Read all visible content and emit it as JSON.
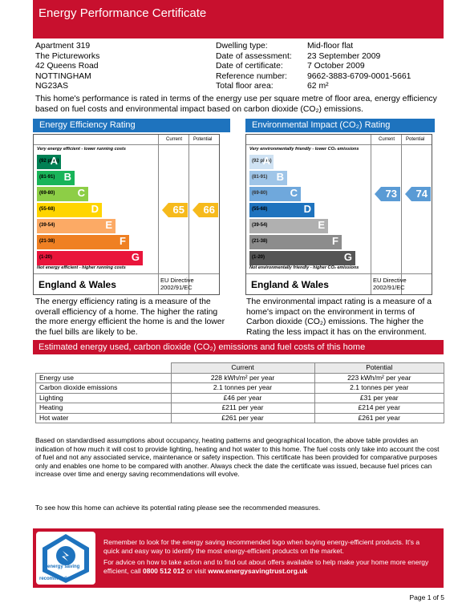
{
  "header": {
    "title": "Energy Performance Certificate"
  },
  "address": [
    "Apartment 319",
    "The Pictureworks",
    "42 Queens Road",
    "NOTTINGHAM",
    "NG23AS"
  ],
  "details": [
    {
      "label": "Dwelling type:",
      "value": "Mid-floor flat"
    },
    {
      "label": "Date of assessment:",
      "value": "23 September 2009"
    },
    {
      "label": "Date of certificate:",
      "value": "7 October 2009"
    },
    {
      "label": "Reference number:",
      "value": "9662-3883-6709-0001-5661"
    },
    {
      "label": "Total floor area:",
      "value": "62 m²"
    }
  ],
  "intro": "This home's performance is rated in terms of the energy use per square metre of floor area, energy efficiency based on fuel costs and environmental impact based on carbon dioxide (CO₂) emissions.",
  "efficiency": {
    "title": "Energy Efficiency Rating",
    "col_current": "Current",
    "col_potential": "Potential",
    "top_caption": "Very energy efficient - lower running costs",
    "bottom_caption": "Not energy efficient - higher running costs",
    "region": "England & Wales",
    "directive": "EU Directive\n2002/91/EC",
    "current": "65",
    "potential": "66",
    "current_color": "#f6ba1c",
    "potential_color": "#f6ba1c",
    "bands": [
      {
        "range": "(92 plus)",
        "letter": "A",
        "color": "#008054"
      },
      {
        "range": "(81-91)",
        "letter": "B",
        "color": "#19b459"
      },
      {
        "range": "(69-80)",
        "letter": "C",
        "color": "#8dce46"
      },
      {
        "range": "(55-68)",
        "letter": "D",
        "color": "#ffd500"
      },
      {
        "range": "(39-54)",
        "letter": "E",
        "color": "#fcaa65"
      },
      {
        "range": "(21-38)",
        "letter": "F",
        "color": "#ef8023"
      },
      {
        "range": "(1-20)",
        "letter": "G",
        "color": "#e9153b"
      }
    ],
    "explanation": "The energy efficiency rating is a measure of the overall efficiency of a home. The higher the rating the more energy efficient the home is and the lower the fuel bills are likely to be."
  },
  "environmental": {
    "title": "Environmental Impact (CO₂) Rating",
    "col_current": "Current",
    "col_potential": "Potential",
    "top_caption": "Very environmentally friendly - lower CO₂ emissions",
    "bottom_caption": "Not environmentally friendly - higher CO₂ emissions",
    "region": "England & Wales",
    "directive": "EU Directive\n2002/91/EC",
    "current": "73",
    "potential": "74",
    "current_color": "#5a9bd5",
    "potential_color": "#5a9bd5",
    "bands": [
      {
        "range": "(92 plus)",
        "letter": "A",
        "color": "#cfe2f3"
      },
      {
        "range": "(81-91)",
        "letter": "B",
        "color": "#9fc5e8"
      },
      {
        "range": "(69-80)",
        "letter": "C",
        "color": "#6fa8dc"
      },
      {
        "range": "(55-68)",
        "letter": "D",
        "color": "#1e73be"
      },
      {
        "range": "(39-54)",
        "letter": "E",
        "color": "#b0b0b0"
      },
      {
        "range": "(21-38)",
        "letter": "F",
        "color": "#8c8c8c"
      },
      {
        "range": "(1-20)",
        "letter": "G",
        "color": "#555555"
      }
    ],
    "explanation": "The environmental impact rating is a measure of a home's impact on the environment in terms of Carbon dioxide (CO₂) emissions. The higher the Rating the less impact it has on the environment."
  },
  "costs": {
    "title": "Estimated energy used, carbon dioxide (CO₂) emissions and fuel costs of this home",
    "col_current": "Current",
    "col_potential": "Potential",
    "rows": [
      {
        "label": "Energy use",
        "current": "228 kWh/m² per year",
        "potential": "223 kWh/m² per year"
      },
      {
        "label": "Carbon dioxide emissions",
        "current": "2.1 tonnes per year",
        "potential": "2.1 tonnes per year"
      },
      {
        "label": "Lighting",
        "current": "£46 per year",
        "potential": "£31 per year"
      },
      {
        "label": "Heating",
        "current": "£211 per year",
        "potential": "£214 per year"
      },
      {
        "label": "Hot water",
        "current": "£261 per year",
        "potential": "£261 per year"
      }
    ]
  },
  "assumptions": "Based on standardised assumptions about occupancy, heating patterns and geographical location, the above table provides an indication of how much it will cost to provide lighting, heating and hot water to this home. The fuel costs only take into account the cost of fuel and not any associated service, maintenance or safety inspection. This certificate has been provided for comparative purposes only and enables one home to be compared with another. Always check the date the certificate was issued, because fuel prices can increase over time and energy saving recommendations will evolve.",
  "see_recommendations": "To see how this home can achieve its potential rating please see the recommended measures.",
  "footer": {
    "line1": "Remember to look for the energy saving recommended logo when buying energy-efficient products. It's a quick and easy way to identify the most energy-efficient products on the market.",
    "line2_pre": "For advice on how to take action and to find out about offers available to help make your home more energy efficient, call ",
    "phone": "0800 512 012",
    "line2_mid": " or visit ",
    "url": "www.energysavingtrust.org.uk",
    "logo_text_top": "energy saving",
    "logo_text_bottom": "recommended"
  },
  "page_label": "Page 1 of 5"
}
